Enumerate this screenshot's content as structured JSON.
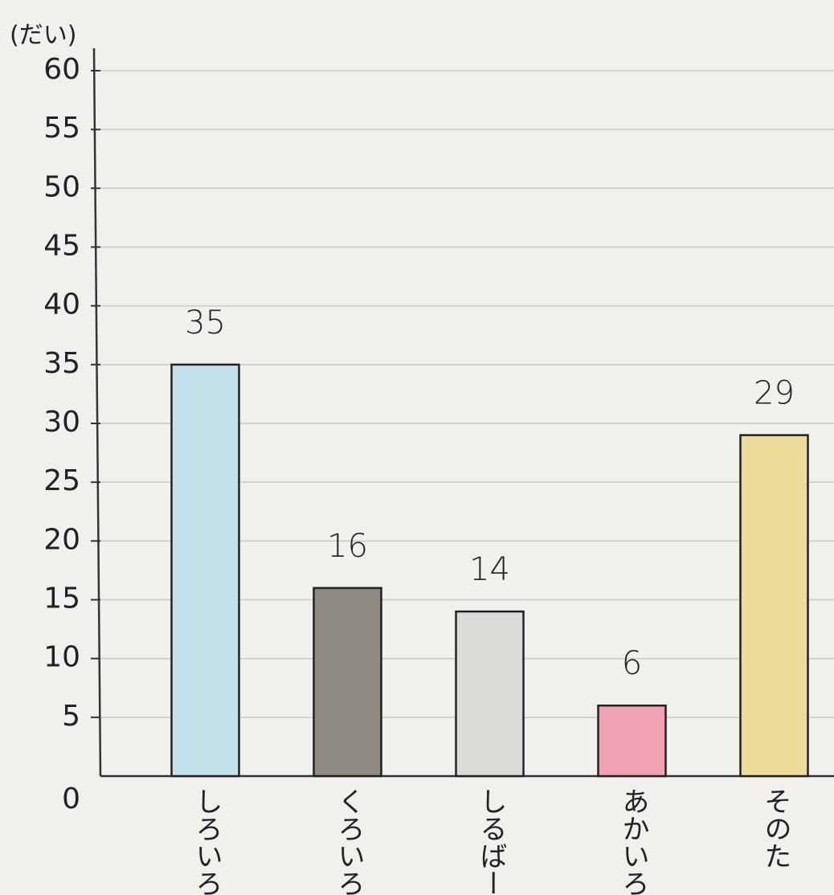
{
  "chart_data": {
    "type": "bar",
    "y_label": "(だい)",
    "categories": [
      "しろいろ",
      "くろいろ",
      "しるばー",
      "あかいろ",
      "そのた"
    ],
    "values": [
      35,
      16,
      14,
      6,
      29
    ],
    "colors": [
      "#c4e1ec",
      "#8f8a84",
      "#dddbd7",
      "#f0a2b4",
      "#eedc9c"
    ],
    "ylim": [
      0,
      60
    ],
    "yticks": [
      0,
      5,
      10,
      15,
      20,
      25,
      30,
      35,
      40,
      45,
      50,
      55,
      60
    ],
    "grid": true
  }
}
